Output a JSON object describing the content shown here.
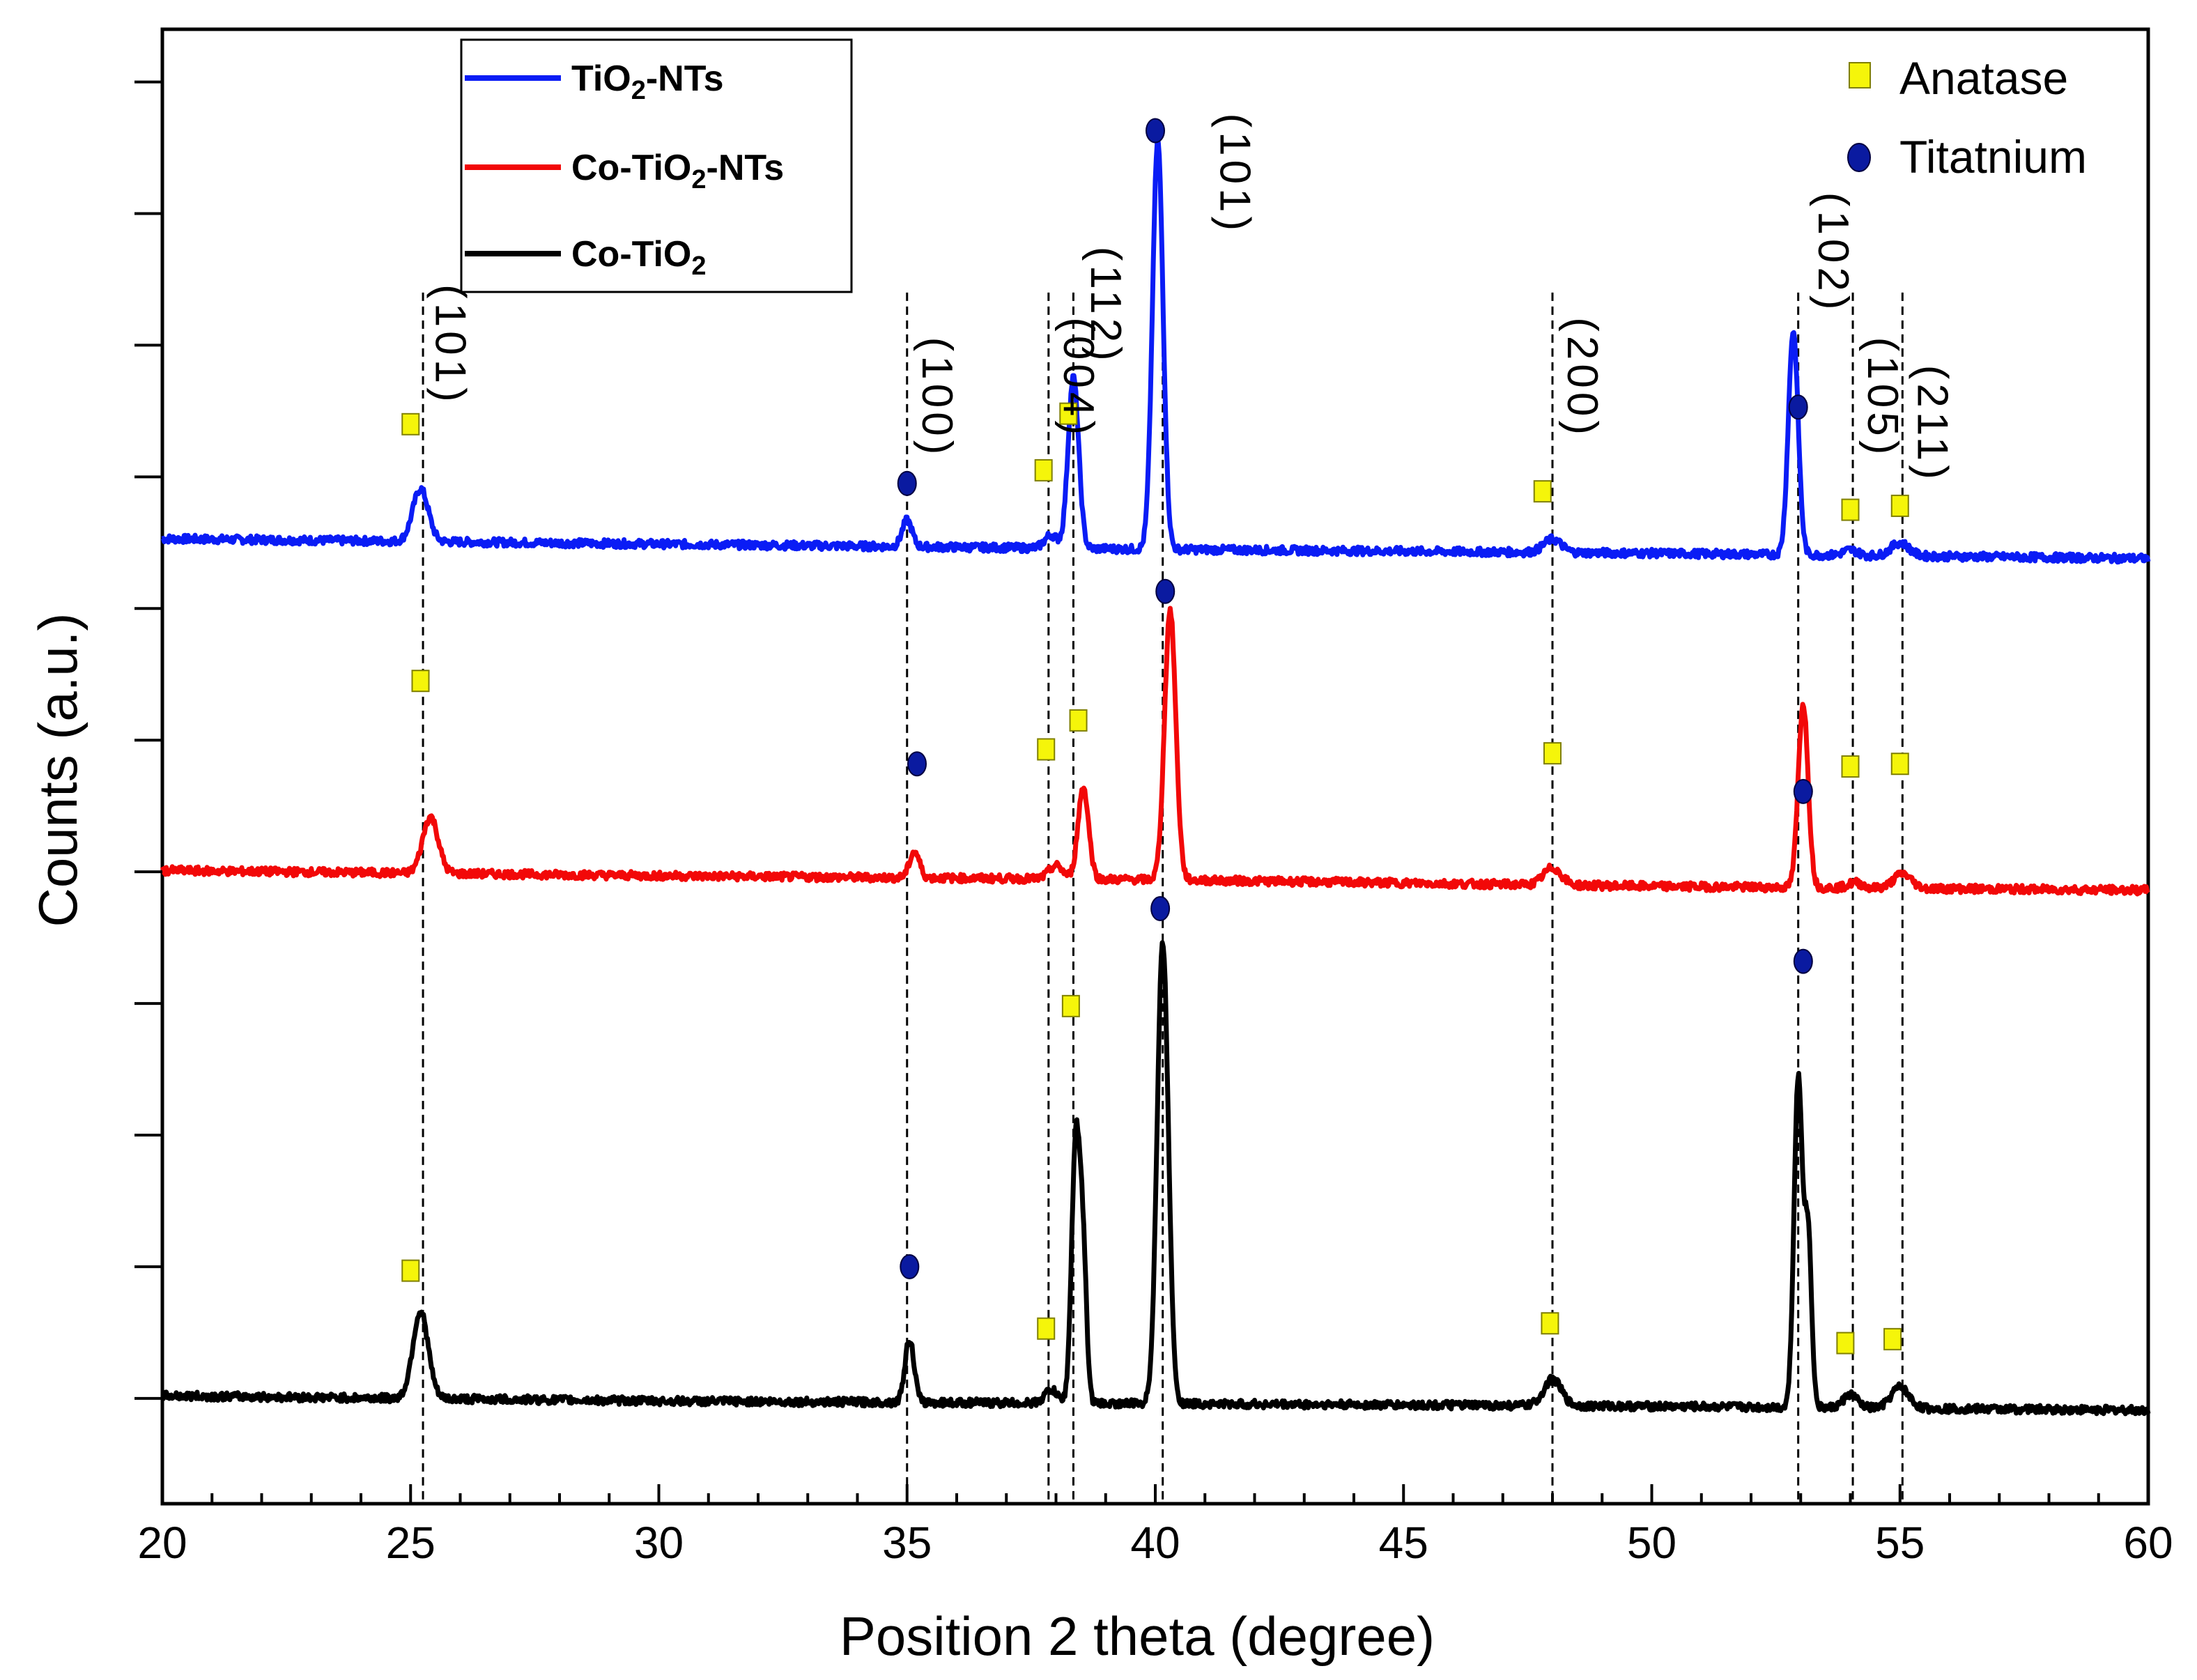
{
  "chart_data": {
    "type": "line",
    "title": "",
    "xlabel": "Position 2 theta (degree)",
    "ylabel": "Counts (a.u.)",
    "xlim": [
      20,
      60
    ],
    "ylim": [
      0,
      1.12
    ],
    "grid": false,
    "x_ticks": [
      "20",
      "25",
      "30",
      "35",
      "40",
      "45",
      "50",
      "55",
      "60"
    ],
    "legend_series": "top-left",
    "legend_markers": "top-right",
    "series": [
      {
        "name": "TiO2-NTs",
        "label_main": "TiO",
        "label_sub": "2",
        "label_tail": "-NTs",
        "color": "#0a1cf5",
        "baseline": [
          [
            20,
            0.733
          ],
          [
            30,
            0.729
          ],
          [
            40,
            0.725
          ],
          [
            50,
            0.722
          ],
          [
            60,
            0.718
          ]
        ],
        "peaks": [
          {
            "x": 25.2,
            "h": 0.04,
            "w": 0.22
          },
          {
            "x": 35.0,
            "h": 0.02,
            "w": 0.14
          },
          {
            "x": 37.9,
            "h": 0.01,
            "w": 0.18
          },
          {
            "x": 38.35,
            "h": 0.13,
            "w": 0.15
          },
          {
            "x": 40.05,
            "h": 0.31,
            "w": 0.15
          },
          {
            "x": 48.0,
            "h": 0.01,
            "w": 0.25
          },
          {
            "x": 52.85,
            "h": 0.17,
            "w": 0.14
          },
          {
            "x": 54.0,
            "h": 0.004,
            "w": 0.2
          },
          {
            "x": 55.0,
            "h": 0.01,
            "w": 0.25
          }
        ]
      },
      {
        "name": "Co-TiO2-NTs",
        "label_main": "Co-TiO",
        "label_sub": "2",
        "label_tail": "-NTs",
        "color": "#f20808",
        "baseline": [
          [
            20,
            0.481
          ],
          [
            30,
            0.477
          ],
          [
            40,
            0.474
          ],
          [
            50,
            0.469
          ],
          [
            60,
            0.466
          ]
        ],
        "peaks": [
          {
            "x": 25.4,
            "h": 0.043,
            "w": 0.22
          },
          {
            "x": 35.15,
            "h": 0.02,
            "w": 0.14
          },
          {
            "x": 38.0,
            "h": 0.01,
            "w": 0.2
          },
          {
            "x": 38.55,
            "h": 0.07,
            "w": 0.15
          },
          {
            "x": 40.3,
            "h": 0.205,
            "w": 0.16
          },
          {
            "x": 48.0,
            "h": 0.013,
            "w": 0.25
          },
          {
            "x": 53.05,
            "h": 0.14,
            "w": 0.14
          },
          {
            "x": 54.1,
            "h": 0.004,
            "w": 0.2
          },
          {
            "x": 55.05,
            "h": 0.011,
            "w": 0.25
          }
        ]
      },
      {
        "name": "Co-TiO2",
        "label_main": "Co-TiO",
        "label_sub": "2",
        "label_tail": "",
        "color": "#000000",
        "baseline": [
          [
            20,
            0.082
          ],
          [
            25,
            0.08
          ],
          [
            30,
            0.078
          ],
          [
            40,
            0.076
          ],
          [
            50,
            0.074
          ],
          [
            60,
            0.071
          ]
        ],
        "peaks": [
          {
            "x": 25.2,
            "h": 0.066,
            "w": 0.22
          },
          {
            "x": 35.05,
            "h": 0.048,
            "w": 0.13
          },
          {
            "x": 37.9,
            "h": 0.01,
            "w": 0.18
          },
          {
            "x": 38.4,
            "h": 0.2,
            "w": 0.12
          },
          {
            "x": 38.55,
            "h": 0.1,
            "w": 0.1
          },
          {
            "x": 40.15,
            "h": 0.35,
            "w": 0.16
          },
          {
            "x": 48.0,
            "h": 0.02,
            "w": 0.25
          },
          {
            "x": 52.95,
            "h": 0.25,
            "w": 0.12
          },
          {
            "x": 53.15,
            "h": 0.13,
            "w": 0.1
          },
          {
            "x": 54.0,
            "h": 0.01,
            "w": 0.2
          },
          {
            "x": 55.0,
            "h": 0.016,
            "w": 0.25
          }
        ]
      }
    ],
    "reference_lines_x": [
      25.25,
      35.0,
      37.85,
      38.35,
      40.15,
      48.0,
      52.95,
      54.05,
      55.05
    ],
    "hkl_labels": [
      {
        "text": "(101)",
        "x": 25.2,
        "y": 0.88
      },
      {
        "text": "(100)",
        "x": 35.0,
        "y": 0.84
      },
      {
        "text": "(004)",
        "x": 37.85,
        "y": 0.855
      },
      {
        "text": "(112)",
        "x": 38.4,
        "y": 0.91
      },
      {
        "text": "(101)",
        "x": 41.0,
        "y": 1.01
      },
      {
        "text": "(200)",
        "x": 48.0,
        "y": 0.855
      },
      {
        "text": "(102)",
        "x": 53.05,
        "y": 0.95
      },
      {
        "text": "(105)",
        "x": 54.05,
        "y": 0.84
      },
      {
        "text": "(211)",
        "x": 55.05,
        "y": 0.82
      }
    ],
    "anatase_markers": [
      [
        25.0,
        0.82
      ],
      [
        37.75,
        0.785
      ],
      [
        38.25,
        0.828
      ],
      [
        47.8,
        0.769
      ],
      [
        54.0,
        0.755
      ],
      [
        55.0,
        0.758
      ],
      [
        25.2,
        0.625
      ],
      [
        37.8,
        0.573
      ],
      [
        38.45,
        0.595
      ],
      [
        48.0,
        0.57
      ],
      [
        54.0,
        0.56
      ],
      [
        55.0,
        0.562
      ],
      [
        25.0,
        0.177
      ],
      [
        37.8,
        0.133
      ],
      [
        38.3,
        0.378
      ],
      [
        47.95,
        0.137
      ],
      [
        53.9,
        0.122
      ],
      [
        54.85,
        0.125
      ]
    ],
    "titanium_markers": [
      [
        35.0,
        0.775
      ],
      [
        40.0,
        1.043
      ],
      [
        52.95,
        0.833
      ],
      [
        35.2,
        0.562
      ],
      [
        40.2,
        0.693
      ],
      [
        53.05,
        0.541
      ],
      [
        35.05,
        0.18
      ],
      [
        40.1,
        0.452
      ],
      [
        53.05,
        0.412
      ]
    ],
    "marker_legend": {
      "anatase_label": "Anatase",
      "titanium_label": "Titatnium",
      "anatase_color": "#f5f50a",
      "titanium_color": "#0a1aa0"
    }
  }
}
